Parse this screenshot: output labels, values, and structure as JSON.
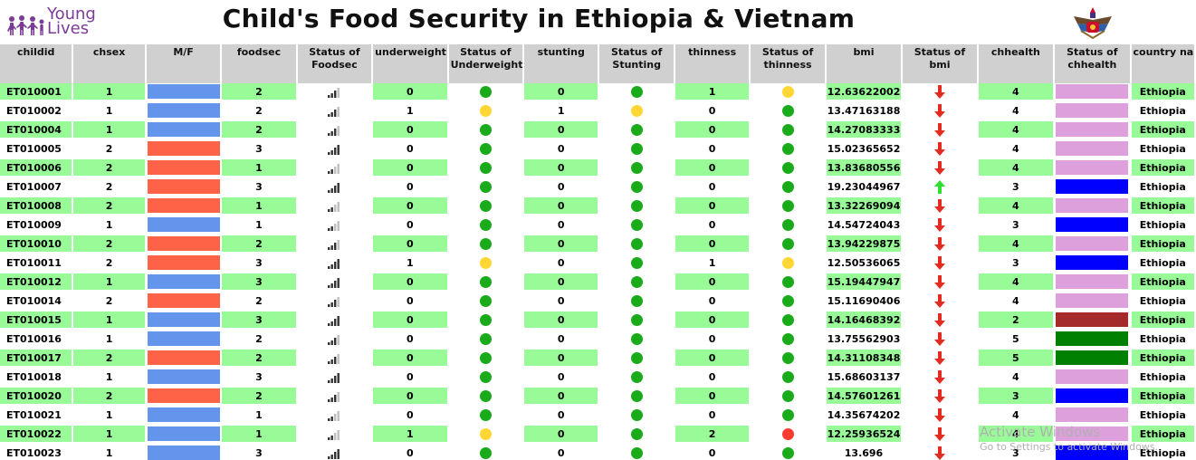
{
  "logo": {
    "line1": "Young",
    "line2": "Lives"
  },
  "title": "Child's Food Security in Ethiopia & Vietnam",
  "columns": [
    "childid",
    "chsex",
    "M/F",
    "foodsec",
    "Status of Foodsec",
    "underweight",
    "Status of Underweight",
    "stunting",
    "Status of Stunting",
    "thinness",
    "Status of thinness",
    "bmi",
    "Status of bmi",
    "chhealth",
    "Status of chhealth",
    "country nam"
  ],
  "colors": {
    "male": "#6495ed",
    "female": "#ff6347",
    "green_row": "#98fb98",
    "header": "#d0d0d0",
    "dot_green": "#1aab1a",
    "dot_yellow": "#ffd633",
    "dot_red": "#ff3b30",
    "arrow_down": "#e32b1f",
    "arrow_up": "#2ee02e",
    "health_plum": "#dda0dd",
    "health_blue": "#0000ff",
    "health_brown": "#a52a2a",
    "health_green": "#008000"
  },
  "rows": [
    {
      "childid": "ET010001",
      "chsex": "1",
      "foodsec": "2",
      "underweight": "0",
      "stunting": "0",
      "thinness": "1",
      "bmi": "12.63622002",
      "bmi_status": "down",
      "chhealth": "4",
      "country": "Ethiopia",
      "uw_status": "green",
      "st_status": "green",
      "th_status": "yellow",
      "health_color": "plum"
    },
    {
      "childid": "ET010002",
      "chsex": "1",
      "foodsec": "2",
      "underweight": "1",
      "stunting": "1",
      "thinness": "0",
      "bmi": "13.47163188",
      "bmi_status": "down",
      "chhealth": "4",
      "country": "Ethiopia",
      "uw_status": "yellow",
      "st_status": "yellow",
      "th_status": "green",
      "health_color": "plum"
    },
    {
      "childid": "ET010004",
      "chsex": "1",
      "foodsec": "2",
      "underweight": "0",
      "stunting": "0",
      "thinness": "0",
      "bmi": "14.27083333",
      "bmi_status": "down",
      "chhealth": "4",
      "country": "Ethiopia",
      "uw_status": "green",
      "st_status": "green",
      "th_status": "green",
      "health_color": "plum"
    },
    {
      "childid": "ET010005",
      "chsex": "2",
      "foodsec": "3",
      "underweight": "0",
      "stunting": "0",
      "thinness": "0",
      "bmi": "15.02365652",
      "bmi_status": "down",
      "chhealth": "4",
      "country": "Ethiopia",
      "uw_status": "green",
      "st_status": "green",
      "th_status": "green",
      "health_color": "plum"
    },
    {
      "childid": "ET010006",
      "chsex": "2",
      "foodsec": "1",
      "underweight": "0",
      "stunting": "0",
      "thinness": "0",
      "bmi": "13.83680556",
      "bmi_status": "down",
      "chhealth": "4",
      "country": "Ethiopia",
      "uw_status": "green",
      "st_status": "green",
      "th_status": "green",
      "health_color": "plum"
    },
    {
      "childid": "ET010007",
      "chsex": "2",
      "foodsec": "3",
      "underweight": "0",
      "stunting": "0",
      "thinness": "0",
      "bmi": "19.23044967",
      "bmi_status": "up",
      "chhealth": "3",
      "country": "Ethiopia",
      "uw_status": "green",
      "st_status": "green",
      "th_status": "green",
      "health_color": "blue"
    },
    {
      "childid": "ET010008",
      "chsex": "2",
      "foodsec": "1",
      "underweight": "0",
      "stunting": "0",
      "thinness": "0",
      "bmi": "13.32269094",
      "bmi_status": "down",
      "chhealth": "4",
      "country": "Ethiopia",
      "uw_status": "green",
      "st_status": "green",
      "th_status": "green",
      "health_color": "plum"
    },
    {
      "childid": "ET010009",
      "chsex": "1",
      "foodsec": "1",
      "underweight": "0",
      "stunting": "0",
      "thinness": "0",
      "bmi": "14.54724043",
      "bmi_status": "down",
      "chhealth": "3",
      "country": "Ethiopia",
      "uw_status": "green",
      "st_status": "green",
      "th_status": "green",
      "health_color": "blue"
    },
    {
      "childid": "ET010010",
      "chsex": "2",
      "foodsec": "2",
      "underweight": "0",
      "stunting": "0",
      "thinness": "0",
      "bmi": "13.94229875",
      "bmi_status": "down",
      "chhealth": "4",
      "country": "Ethiopia",
      "uw_status": "green",
      "st_status": "green",
      "th_status": "green",
      "health_color": "plum"
    },
    {
      "childid": "ET010011",
      "chsex": "2",
      "foodsec": "3",
      "underweight": "1",
      "stunting": "0",
      "thinness": "1",
      "bmi": "12.50536065",
      "bmi_status": "down",
      "chhealth": "3",
      "country": "Ethiopia",
      "uw_status": "yellow",
      "st_status": "green",
      "th_status": "yellow",
      "health_color": "blue"
    },
    {
      "childid": "ET010012",
      "chsex": "1",
      "foodsec": "3",
      "underweight": "0",
      "stunting": "0",
      "thinness": "0",
      "bmi": "15.19447947",
      "bmi_status": "down",
      "chhealth": "4",
      "country": "Ethiopia",
      "uw_status": "green",
      "st_status": "green",
      "th_status": "green",
      "health_color": "plum"
    },
    {
      "childid": "ET010014",
      "chsex": "2",
      "foodsec": "2",
      "underweight": "0",
      "stunting": "0",
      "thinness": "0",
      "bmi": "15.11690406",
      "bmi_status": "down",
      "chhealth": "4",
      "country": "Ethiopia",
      "uw_status": "green",
      "st_status": "green",
      "th_status": "green",
      "health_color": "plum"
    },
    {
      "childid": "ET010015",
      "chsex": "1",
      "foodsec": "3",
      "underweight": "0",
      "stunting": "0",
      "thinness": "0",
      "bmi": "14.16468392",
      "bmi_status": "down",
      "chhealth": "2",
      "country": "Ethiopia",
      "uw_status": "green",
      "st_status": "green",
      "th_status": "green",
      "health_color": "brown"
    },
    {
      "childid": "ET010016",
      "chsex": "1",
      "foodsec": "2",
      "underweight": "0",
      "stunting": "0",
      "thinness": "0",
      "bmi": "13.75562903",
      "bmi_status": "down",
      "chhealth": "5",
      "country": "Ethiopia",
      "uw_status": "green",
      "st_status": "green",
      "th_status": "green",
      "health_color": "green"
    },
    {
      "childid": "ET010017",
      "chsex": "2",
      "foodsec": "2",
      "underweight": "0",
      "stunting": "0",
      "thinness": "0",
      "bmi": "14.31108348",
      "bmi_status": "down",
      "chhealth": "5",
      "country": "Ethiopia",
      "uw_status": "green",
      "st_status": "green",
      "th_status": "green",
      "health_color": "green"
    },
    {
      "childid": "ET010018",
      "chsex": "1",
      "foodsec": "3",
      "underweight": "0",
      "stunting": "0",
      "thinness": "0",
      "bmi": "15.68603137",
      "bmi_status": "down",
      "chhealth": "4",
      "country": "Ethiopia",
      "uw_status": "green",
      "st_status": "green",
      "th_status": "green",
      "health_color": "plum"
    },
    {
      "childid": "ET010020",
      "chsex": "2",
      "foodsec": "2",
      "underweight": "0",
      "stunting": "0",
      "thinness": "0",
      "bmi": "14.57601261",
      "bmi_status": "down",
      "chhealth": "3",
      "country": "Ethiopia",
      "uw_status": "green",
      "st_status": "green",
      "th_status": "green",
      "health_color": "blue"
    },
    {
      "childid": "ET010021",
      "chsex": "1",
      "foodsec": "1",
      "underweight": "0",
      "stunting": "0",
      "thinness": "0",
      "bmi": "14.35674202",
      "bmi_status": "down",
      "chhealth": "4",
      "country": "Ethiopia",
      "uw_status": "green",
      "st_status": "green",
      "th_status": "green",
      "health_color": "plum"
    },
    {
      "childid": "ET010022",
      "chsex": "1",
      "foodsec": "1",
      "underweight": "1",
      "stunting": "0",
      "thinness": "2",
      "bmi": "12.25936524",
      "bmi_status": "down",
      "chhealth": "4",
      "country": "Ethiopia",
      "uw_status": "yellow",
      "st_status": "green",
      "th_status": "red",
      "health_color": "plum"
    },
    {
      "childid": "ET010023",
      "chsex": "1",
      "foodsec": "3",
      "underweight": "0",
      "stunting": "0",
      "thinness": "0",
      "bmi": "13.696",
      "bmi_status": "down",
      "chhealth": "3",
      "country": "Ethiopia",
      "uw_status": "green",
      "st_status": "green",
      "th_status": "green",
      "health_color": "blue"
    }
  ],
  "watermark": {
    "line1": "Activate Windows",
    "line2": "Go to Settings to activate Windows."
  }
}
